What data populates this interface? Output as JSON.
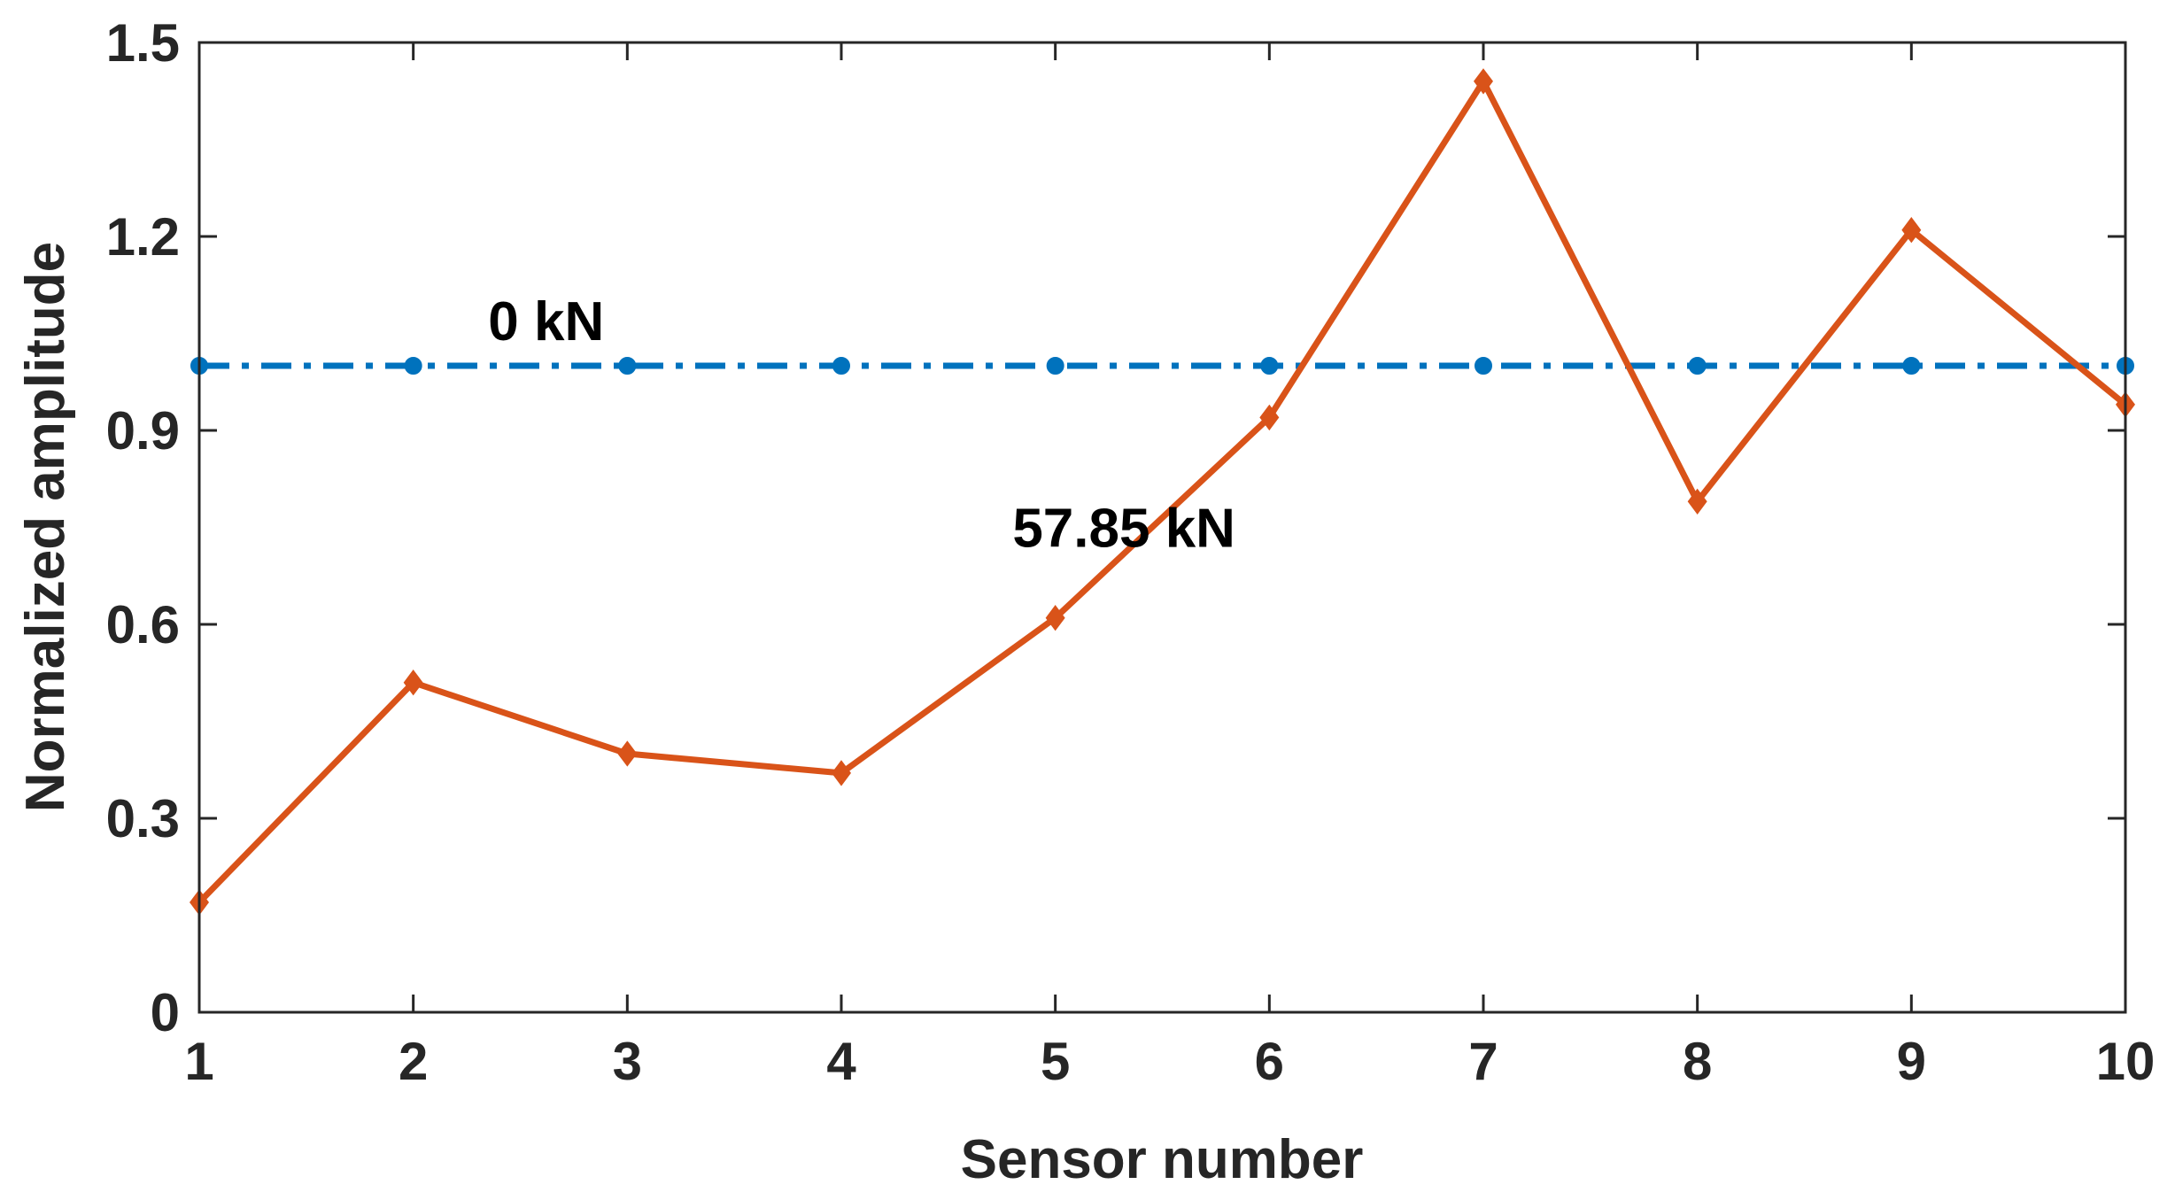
{
  "chart_data": {
    "type": "line",
    "title": "",
    "xlabel": "Sensor number",
    "ylabel": "Normalized amplitude",
    "xlim": [
      1,
      10
    ],
    "ylim": [
      0,
      1.5
    ],
    "xticks": [
      "1",
      "2",
      "3",
      "4",
      "5",
      "6",
      "7",
      "8",
      "9",
      "10"
    ],
    "yticks": [
      "0",
      "0.3",
      "0.6",
      "0.9",
      "1.2",
      "1.5"
    ],
    "grid": false,
    "x": [
      1,
      2,
      3,
      4,
      5,
      6,
      7,
      8,
      9,
      10
    ],
    "series": [
      {
        "name": "0 kN",
        "values": [
          1.0,
          1.0,
          1.0,
          1.0,
          1.0,
          1.0,
          1.0,
          1.0,
          1.0,
          1.0
        ],
        "color": "#0072BD",
        "line_style": "dash-dot",
        "marker": "circle"
      },
      {
        "name": "57.85 kN",
        "values": [
          0.17,
          0.51,
          0.4,
          0.37,
          0.61,
          0.92,
          1.44,
          0.79,
          1.21,
          0.94
        ],
        "color": "#D95319",
        "line_style": "solid",
        "marker": "diamond"
      }
    ],
    "annotations": [
      {
        "text": "0 kN",
        "x": 2.35,
        "y": 1.04
      },
      {
        "text": "57.85 kN",
        "x": 4.8,
        "y": 0.72
      }
    ]
  }
}
